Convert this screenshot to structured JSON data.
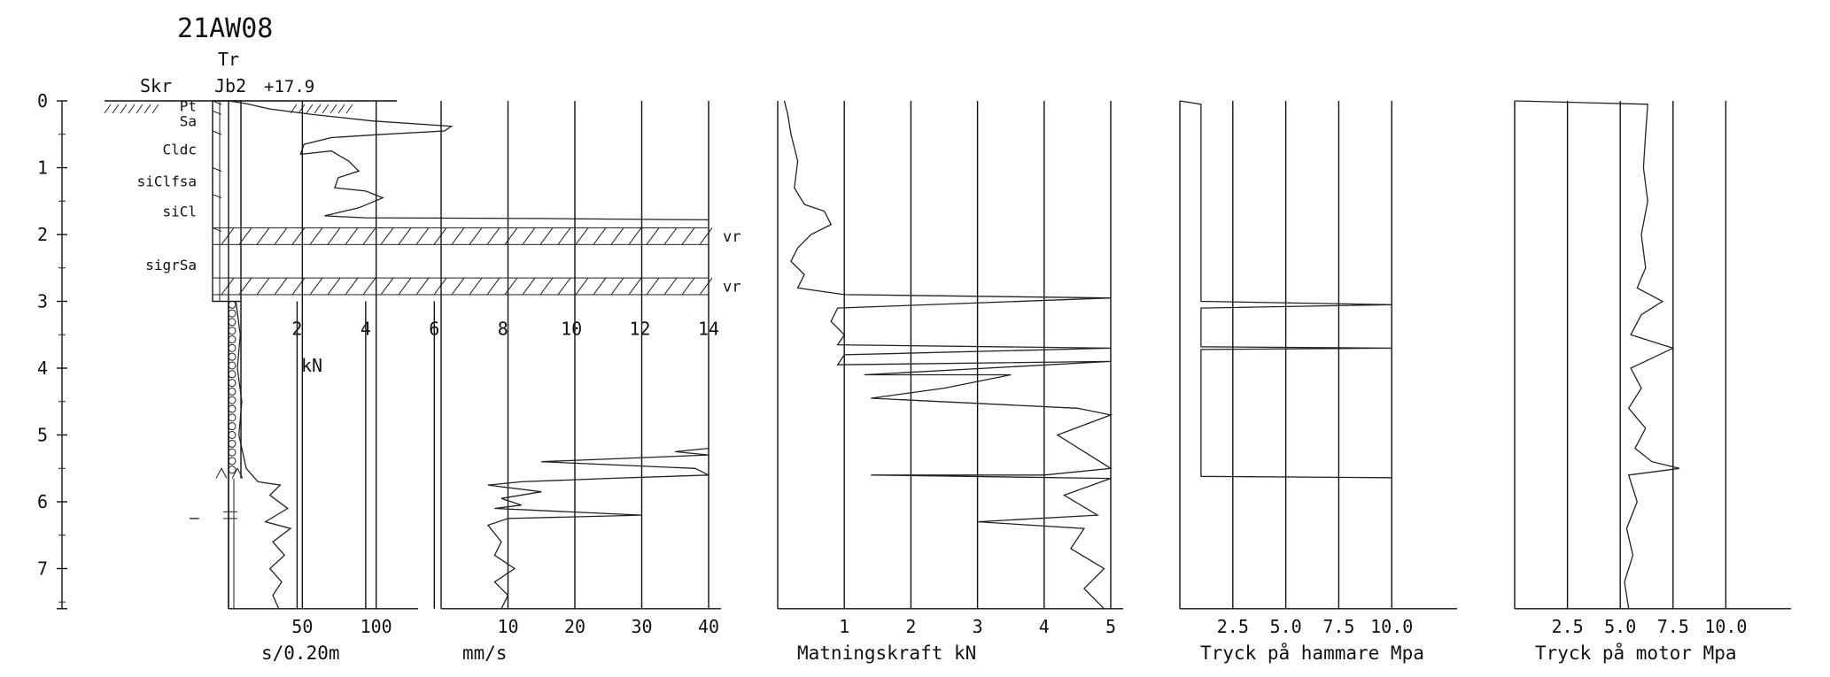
{
  "header": {
    "borehole_id": "21AW08",
    "method_top": "Tr",
    "col_skr": "Skr",
    "col_jb": "Jb2",
    "elevation": "+17.9"
  },
  "chart_data": [
    {
      "type": "line",
      "name": "depth-scale",
      "ylim": [
        0,
        7.6
      ],
      "y_ticks": [
        "0",
        "1",
        "2",
        "3",
        "4",
        "5",
        "6",
        "7"
      ]
    },
    {
      "type": "table",
      "name": "soil-layers",
      "layers": [
        {
          "label": "Pt",
          "top": 0.0,
          "bottom": 0.15
        },
        {
          "label": "Sa",
          "top": 0.15,
          "bottom": 0.45
        },
        {
          "label": "Cldc",
          "top": 0.45,
          "bottom": 1.0
        },
        {
          "label": "siClfsa",
          "top": 1.0,
          "bottom": 1.4
        },
        {
          "label": "siCl",
          "top": 1.4,
          "bottom": 1.9
        },
        {
          "label": "sigrSa",
          "top": 1.9,
          "bottom": 3.0
        }
      ],
      "hatched_bands": [
        {
          "top": 1.9,
          "bottom": 2.15,
          "label": "vr"
        },
        {
          "top": 2.65,
          "bottom": 2.9,
          "label": "vr"
        }
      ],
      "sounding_stop_depth": 5.65,
      "minor_mark": "–"
    },
    {
      "type": "line",
      "name": "force-kN",
      "xlabel": "kN",
      "xlim": [
        0,
        14
      ],
      "x_ticks": [
        "2",
        "4",
        "6",
        "8",
        "10",
        "12",
        "14"
      ],
      "points": [
        [
          0,
          0.0
        ],
        [
          0.5,
          0.04
        ],
        [
          1.2,
          0.12
        ],
        [
          2.4,
          0.2
        ],
        [
          4.2,
          0.3
        ],
        [
          6.5,
          0.38
        ],
        [
          6.3,
          0.45
        ],
        [
          4.5,
          0.5
        ],
        [
          3.0,
          0.55
        ],
        [
          2.2,
          0.65
        ],
        [
          2.1,
          0.8
        ],
        [
          3.0,
          0.75
        ],
        [
          3.5,
          0.9
        ],
        [
          3.8,
          1.05
        ],
        [
          3.2,
          1.15
        ],
        [
          3.1,
          1.3
        ],
        [
          4.0,
          1.35
        ],
        [
          4.5,
          1.45
        ],
        [
          3.8,
          1.6
        ],
        [
          2.8,
          1.72
        ],
        [
          4.0,
          1.75
        ],
        [
          9.0,
          1.76
        ],
        [
          14.0,
          1.78
        ]
      ]
    },
    {
      "type": "line",
      "name": "penetration-time",
      "xlabel": "s/0.20m",
      "xlim": [
        0,
        120
      ],
      "x_ticks": [
        "50",
        "100"
      ],
      "points": [
        [
          5,
          3.0
        ],
        [
          8,
          3.5
        ],
        [
          6,
          4.0
        ],
        [
          9,
          4.5
        ],
        [
          7,
          5.0
        ],
        [
          12,
          5.5
        ],
        [
          20,
          5.7
        ],
        [
          35,
          5.75
        ],
        [
          28,
          5.9
        ],
        [
          40,
          6.1
        ],
        [
          25,
          6.3
        ],
        [
          42,
          6.4
        ],
        [
          30,
          6.6
        ],
        [
          38,
          6.8
        ],
        [
          28,
          7.0
        ],
        [
          36,
          7.2
        ],
        [
          30,
          7.4
        ],
        [
          34,
          7.6
        ]
      ]
    },
    {
      "type": "line",
      "name": "rate",
      "xlabel": "mm/s",
      "xlim": [
        0,
        40
      ],
      "x_ticks": [
        "10",
        "20",
        "30",
        "40"
      ],
      "points": [
        [
          40,
          5.2
        ],
        [
          35,
          5.25
        ],
        [
          40,
          5.3
        ],
        [
          15,
          5.4
        ],
        [
          38,
          5.5
        ],
        [
          40,
          5.6
        ],
        [
          25,
          5.65
        ],
        [
          12,
          5.7
        ],
        [
          7,
          5.75
        ],
        [
          15,
          5.85
        ],
        [
          9,
          5.95
        ],
        [
          12,
          6.05
        ],
        [
          8,
          6.1
        ],
        [
          30,
          6.2
        ],
        [
          10,
          6.25
        ],
        [
          7,
          6.35
        ],
        [
          9,
          6.6
        ],
        [
          8,
          6.8
        ],
        [
          11,
          7.0
        ],
        [
          8,
          7.2
        ],
        [
          10,
          7.4
        ],
        [
          9,
          7.6
        ]
      ]
    },
    {
      "type": "line",
      "name": "feed-force",
      "xlabel": "Matningskraft kN",
      "xlim": [
        0,
        5
      ],
      "x_ticks": [
        "1",
        "2",
        "3",
        "4",
        "5"
      ],
      "points": [
        [
          0.1,
          0.0
        ],
        [
          0.15,
          0.2
        ],
        [
          0.2,
          0.5
        ],
        [
          0.3,
          0.9
        ],
        [
          0.25,
          1.3
        ],
        [
          0.4,
          1.55
        ],
        [
          0.7,
          1.65
        ],
        [
          0.8,
          1.85
        ],
        [
          0.5,
          2.0
        ],
        [
          0.3,
          2.2
        ],
        [
          0.2,
          2.4
        ],
        [
          0.4,
          2.6
        ],
        [
          0.3,
          2.8
        ],
        [
          1.0,
          2.9
        ],
        [
          5.0,
          2.95
        ],
        [
          0.9,
          3.1
        ],
        [
          0.8,
          3.3
        ],
        [
          1.0,
          3.5
        ],
        [
          0.9,
          3.65
        ],
        [
          5.0,
          3.7
        ],
        [
          1.0,
          3.8
        ],
        [
          0.9,
          3.95
        ],
        [
          5.0,
          3.9
        ],
        [
          1.3,
          4.1
        ],
        [
          3.5,
          4.1
        ],
        [
          2.5,
          4.3
        ],
        [
          1.4,
          4.45
        ],
        [
          4.5,
          4.6
        ],
        [
          5.0,
          4.7
        ],
        [
          4.2,
          5.0
        ],
        [
          5.0,
          5.5
        ],
        [
          4.0,
          5.6
        ],
        [
          1.4,
          5.6
        ],
        [
          5.0,
          5.65
        ],
        [
          4.3,
          5.9
        ],
        [
          4.8,
          6.2
        ],
        [
          3.0,
          6.3
        ],
        [
          4.6,
          6.4
        ],
        [
          4.4,
          6.7
        ],
        [
          4.9,
          7.0
        ],
        [
          4.6,
          7.3
        ],
        [
          4.9,
          7.6
        ]
      ]
    },
    {
      "type": "line",
      "name": "hammer-pressure",
      "xlabel": "Tryck på hammare Mpa",
      "xlim": [
        0,
        12.5
      ],
      "x_ticks": [
        "2.5",
        "5.0",
        "7.5",
        "10.0"
      ],
      "points": [
        [
          0,
          0.0
        ],
        [
          1.0,
          0.05
        ],
        [
          1.0,
          3.0
        ],
        [
          10.0,
          3.05
        ],
        [
          1.0,
          3.1
        ],
        [
          1.0,
          3.68
        ],
        [
          10.0,
          3.7
        ],
        [
          1.0,
          3.72
        ],
        [
          1.0,
          5.62
        ],
        [
          10.0,
          5.64
        ]
      ]
    },
    {
      "type": "line",
      "name": "motor-pressure",
      "xlabel": "Tryck på motor Mpa",
      "xlim": [
        0,
        12.5
      ],
      "x_ticks": [
        "2.5",
        "5.0",
        "7.5",
        "10.0"
      ],
      "points": [
        [
          0,
          0.0
        ],
        [
          6.3,
          0.05
        ],
        [
          6.2,
          0.5
        ],
        [
          6.1,
          1.0
        ],
        [
          6.3,
          1.5
        ],
        [
          6.0,
          2.0
        ],
        [
          6.2,
          2.5
        ],
        [
          5.8,
          2.8
        ],
        [
          7.0,
          3.0
        ],
        [
          6.0,
          3.2
        ],
        [
          5.5,
          3.5
        ],
        [
          7.5,
          3.7
        ],
        [
          5.5,
          4.0
        ],
        [
          6.0,
          4.3
        ],
        [
          5.4,
          4.6
        ],
        [
          6.2,
          4.9
        ],
        [
          5.7,
          5.2
        ],
        [
          6.5,
          5.4
        ],
        [
          7.8,
          5.5
        ],
        [
          5.4,
          5.6
        ],
        [
          5.8,
          6.0
        ],
        [
          5.3,
          6.4
        ],
        [
          5.6,
          6.8
        ],
        [
          5.2,
          7.2
        ],
        [
          5.4,
          7.6
        ]
      ]
    }
  ]
}
